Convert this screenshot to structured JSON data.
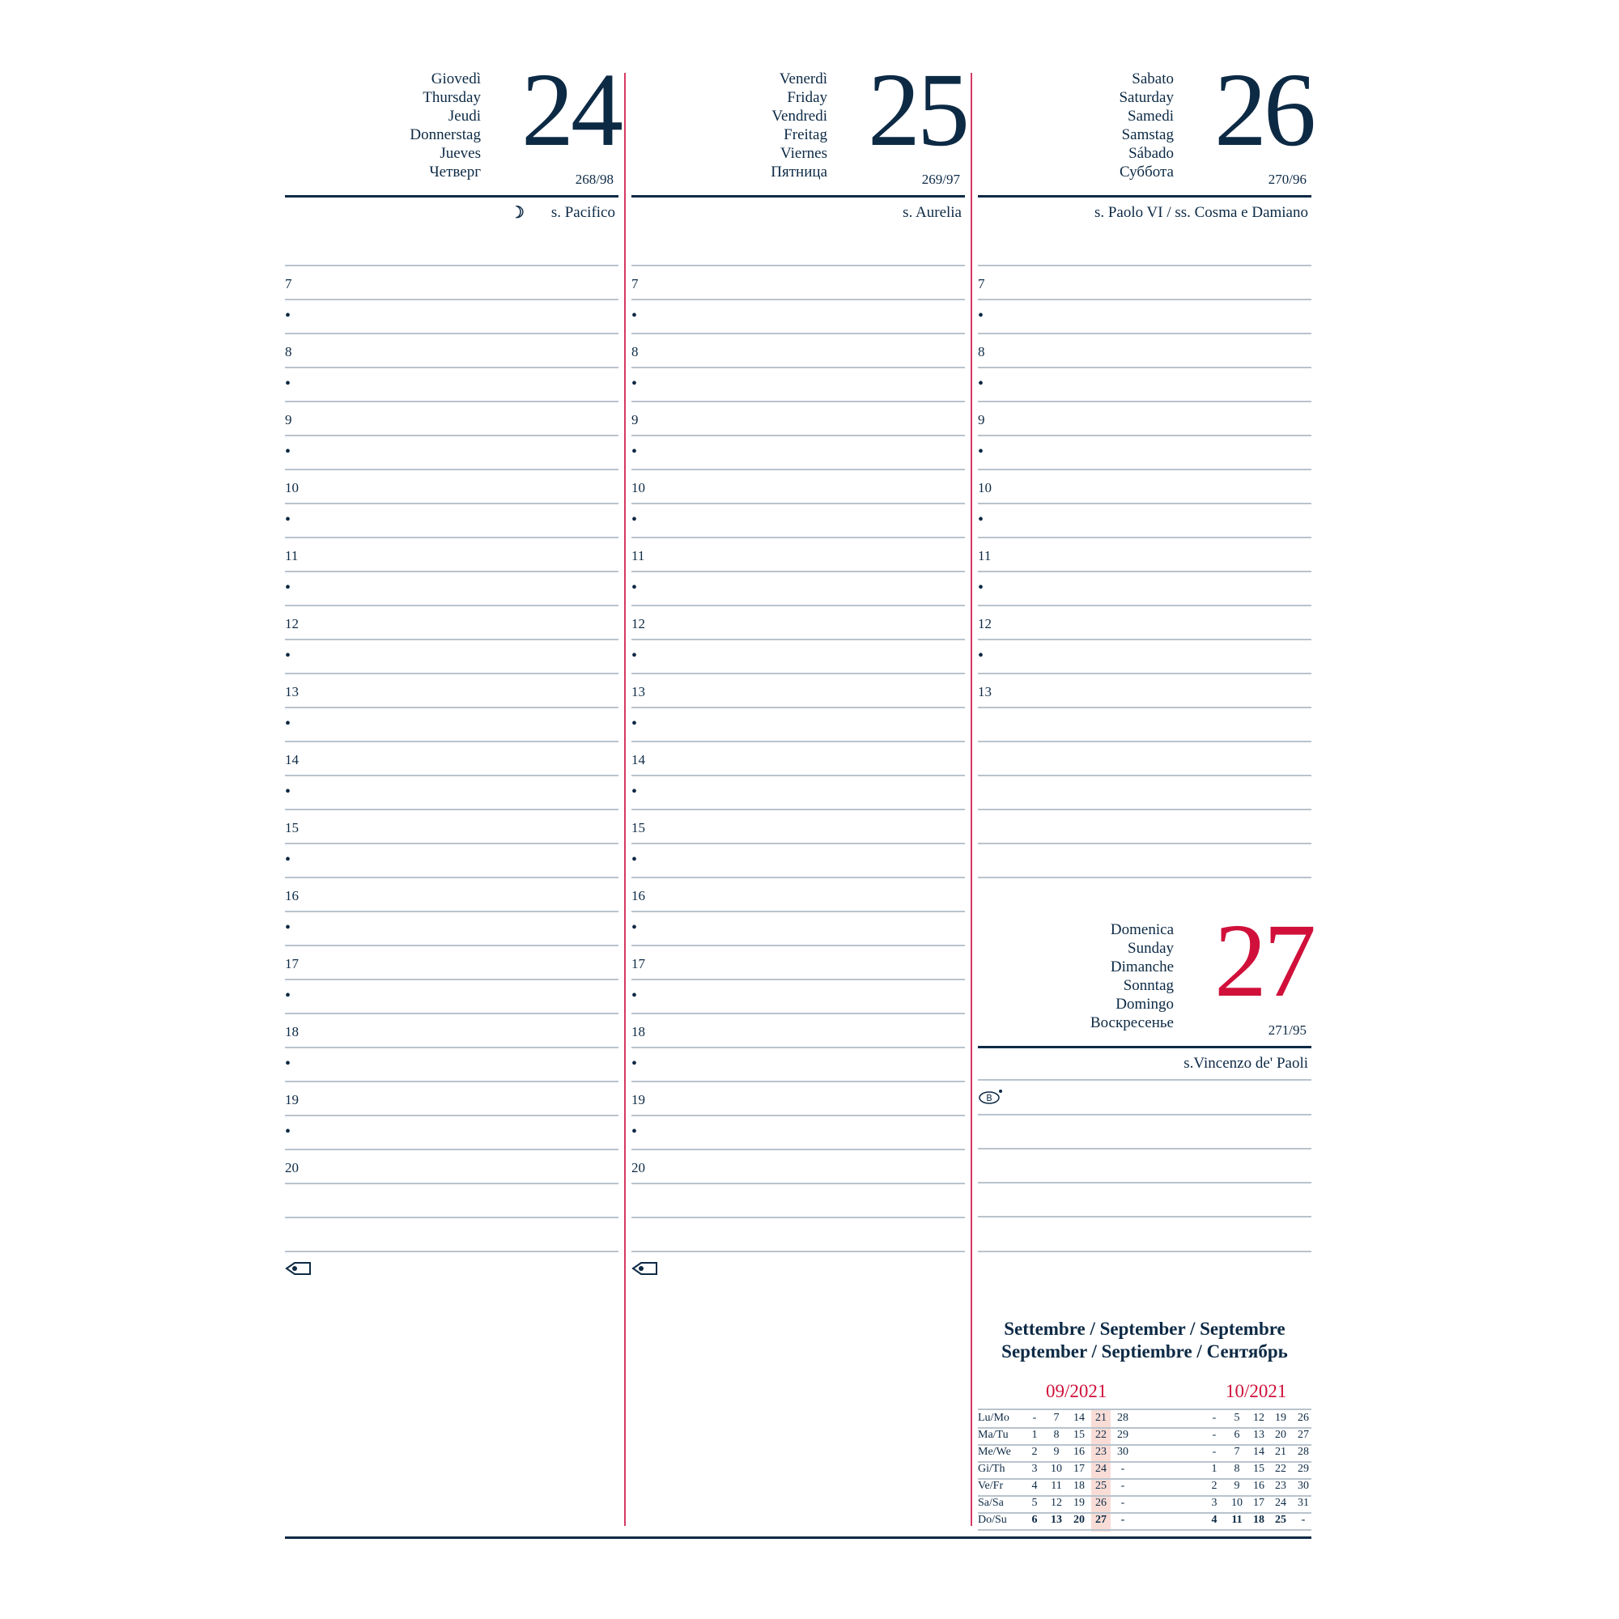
{
  "days": [
    {
      "names": [
        "Giovedì",
        "Thursday",
        "Jeudi",
        "Donnerstag",
        "Jueves",
        "Четверг"
      ],
      "number": "24",
      "count": "268/98",
      "saint": "s. Pacifico",
      "moon_icon": "waning-moon-icon",
      "color": "#0d2a45",
      "slots": [
        "",
        "7",
        "•",
        "8",
        "•",
        "9",
        "•",
        "10",
        "•",
        "11",
        "•",
        "12",
        "•",
        "13",
        "•",
        "14",
        "•",
        "15",
        "•",
        "16",
        "•",
        "17",
        "•",
        "18",
        "•",
        "19",
        "•",
        "20",
        ""
      ],
      "footer_icon": "tag-icon"
    },
    {
      "names": [
        "Venerdì",
        "Friday",
        "Vendredi",
        "Freitag",
        "Viernes",
        "Пятница"
      ],
      "number": "25",
      "count": "269/97",
      "saint": "s. Aurelia",
      "color": "#0d2a45",
      "slots": [
        "",
        "7",
        "•",
        "8",
        "•",
        "9",
        "•",
        "10",
        "•",
        "11",
        "•",
        "12",
        "•",
        "13",
        "•",
        "14",
        "•",
        "15",
        "•",
        "16",
        "•",
        "17",
        "•",
        "18",
        "•",
        "19",
        "•",
        "20",
        ""
      ],
      "footer_icon": "tag-icon"
    },
    {
      "names": [
        "Sabato",
        "Saturday",
        "Samedi",
        "Samstag",
        "Sábado",
        "Суббота"
      ],
      "number": "26",
      "count": "270/96",
      "saint": "s. Paolo VI / ss. Cosma e Damiano",
      "color": "#0d2a45",
      "slots": [
        "",
        "7",
        "•",
        "8",
        "•",
        "9",
        "•",
        "10",
        "•",
        "11",
        "•",
        "12",
        "•",
        "13",
        "",
        "",
        "",
        "",
        ""
      ]
    },
    {
      "names": [
        "Domenica",
        "Sunday",
        "Dimanche",
        "Sonntag",
        "Domingo",
        "Воскресенье"
      ],
      "number": "27",
      "count": "271/95",
      "saint": "s.Vincenzo de' Paoli",
      "color": "#d0103a",
      "b_icon": "B",
      "slots": [
        "",
        "",
        "",
        "",
        ""
      ]
    }
  ],
  "month_title": [
    "Settembre / September / Septembre",
    "September / Septiembre / Сентябрь"
  ],
  "mini_calendar": {
    "months": [
      "09/2021",
      "10/2021"
    ],
    "highlight_color": "#f9dcd6",
    "rows": [
      {
        "label": "Lu/Mo",
        "m1": [
          "-",
          "7",
          "14",
          "21",
          "28"
        ],
        "m2": [
          "-",
          "5",
          "12",
          "19",
          "26"
        ]
      },
      {
        "label": "Ma/Tu",
        "m1": [
          "1",
          "8",
          "15",
          "22",
          "29"
        ],
        "m2": [
          "-",
          "6",
          "13",
          "20",
          "27"
        ]
      },
      {
        "label": "Me/We",
        "m1": [
          "2",
          "9",
          "16",
          "23",
          "30"
        ],
        "m2": [
          "-",
          "7",
          "14",
          "21",
          "28"
        ]
      },
      {
        "label": "Gi/Th",
        "m1": [
          "3",
          "10",
          "17",
          "24",
          "-"
        ],
        "m2": [
          "1",
          "8",
          "15",
          "22",
          "29"
        ]
      },
      {
        "label": "Ve/Fr",
        "m1": [
          "4",
          "11",
          "18",
          "25",
          "-"
        ],
        "m2": [
          "2",
          "9",
          "16",
          "23",
          "30"
        ]
      },
      {
        "label": "Sa/Sa",
        "m1": [
          "5",
          "12",
          "19",
          "26",
          "-"
        ],
        "m2": [
          "3",
          "10",
          "17",
          "24",
          "31"
        ]
      },
      {
        "label": "Do/Su",
        "m1": [
          "6",
          "13",
          "20",
          "27",
          "-"
        ],
        "m2": [
          "4",
          "11",
          "18",
          "25",
          "-"
        ],
        "bold": true
      }
    ]
  },
  "colors": {
    "navy": "#0d2a45",
    "red": "#d0103a",
    "rule": "#b9c3cd",
    "divider": "#d63a63"
  }
}
